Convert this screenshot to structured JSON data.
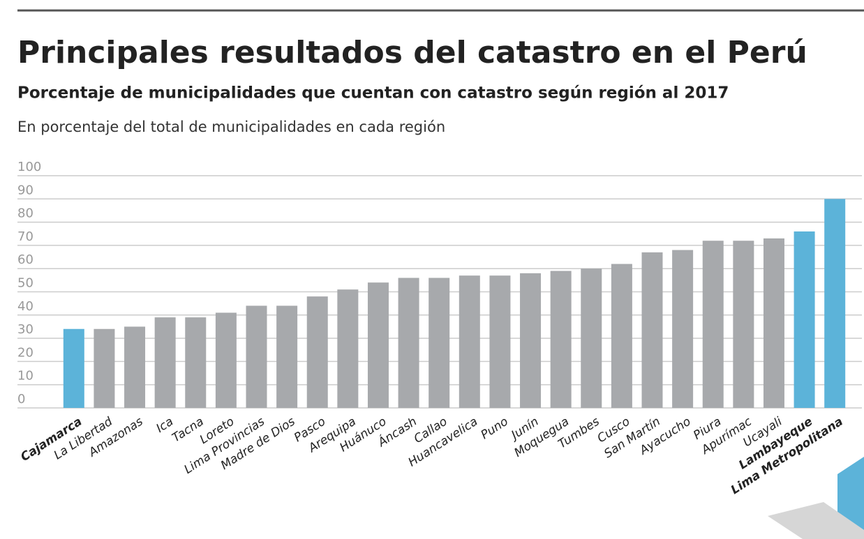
{
  "chart_data": {
    "type": "bar",
    "title": "Principales resultados del catastro en el Perú",
    "subtitle": "Porcentaje de municipalidades que cuentan con catastro según región al 2017",
    "y_label": "En porcentaje del total de municipalidades en cada región",
    "categories": [
      "Cajamarca",
      "La Libertad",
      "Amazonas",
      "Ica",
      "Tacna",
      "Loreto",
      "Lima Provincias",
      "Madre de Dios",
      "Pasco",
      "Arequipa",
      "Huánuco",
      "Áncash",
      "Callao",
      "Huancavelica",
      "Puno",
      "Junín",
      "Moquegua",
      "Tumbes",
      "Cusco",
      "San Martín",
      "Ayacucho",
      "Piura",
      "Apurímac",
      "Ucayali",
      "Lambayeque",
      "Lima Metropolitana"
    ],
    "values": [
      34,
      34,
      35,
      39,
      39,
      41,
      44,
      44,
      48,
      51,
      54,
      56,
      56,
      57,
      57,
      58,
      59,
      60,
      62,
      67,
      68,
      72,
      72,
      73,
      76,
      90
    ],
    "color": "#a7a9ac",
    "colors": [
      "#5cb3d9",
      "#a7a9ac",
      "#a7a9ac",
      "#a7a9ac",
      "#a7a9ac",
      "#a7a9ac",
      "#a7a9ac",
      "#a7a9ac",
      "#a7a9ac",
      "#a7a9ac",
      "#a7a9ac",
      "#a7a9ac",
      "#a7a9ac",
      "#a7a9ac",
      "#a7a9ac",
      "#a7a9ac",
      "#a7a9ac",
      "#a7a9ac",
      "#a7a9ac",
      "#a7a9ac",
      "#a7a9ac",
      "#a7a9ac",
      "#a7a9ac",
      "#a7a9ac",
      "#5cb3d9",
      "#5cb3d9"
    ],
    "ylim": [
      0,
      100
    ],
    "yticks": [
      0,
      10,
      20,
      30,
      40,
      50,
      60,
      70,
      80,
      90,
      100
    ],
    "grid": true
  }
}
